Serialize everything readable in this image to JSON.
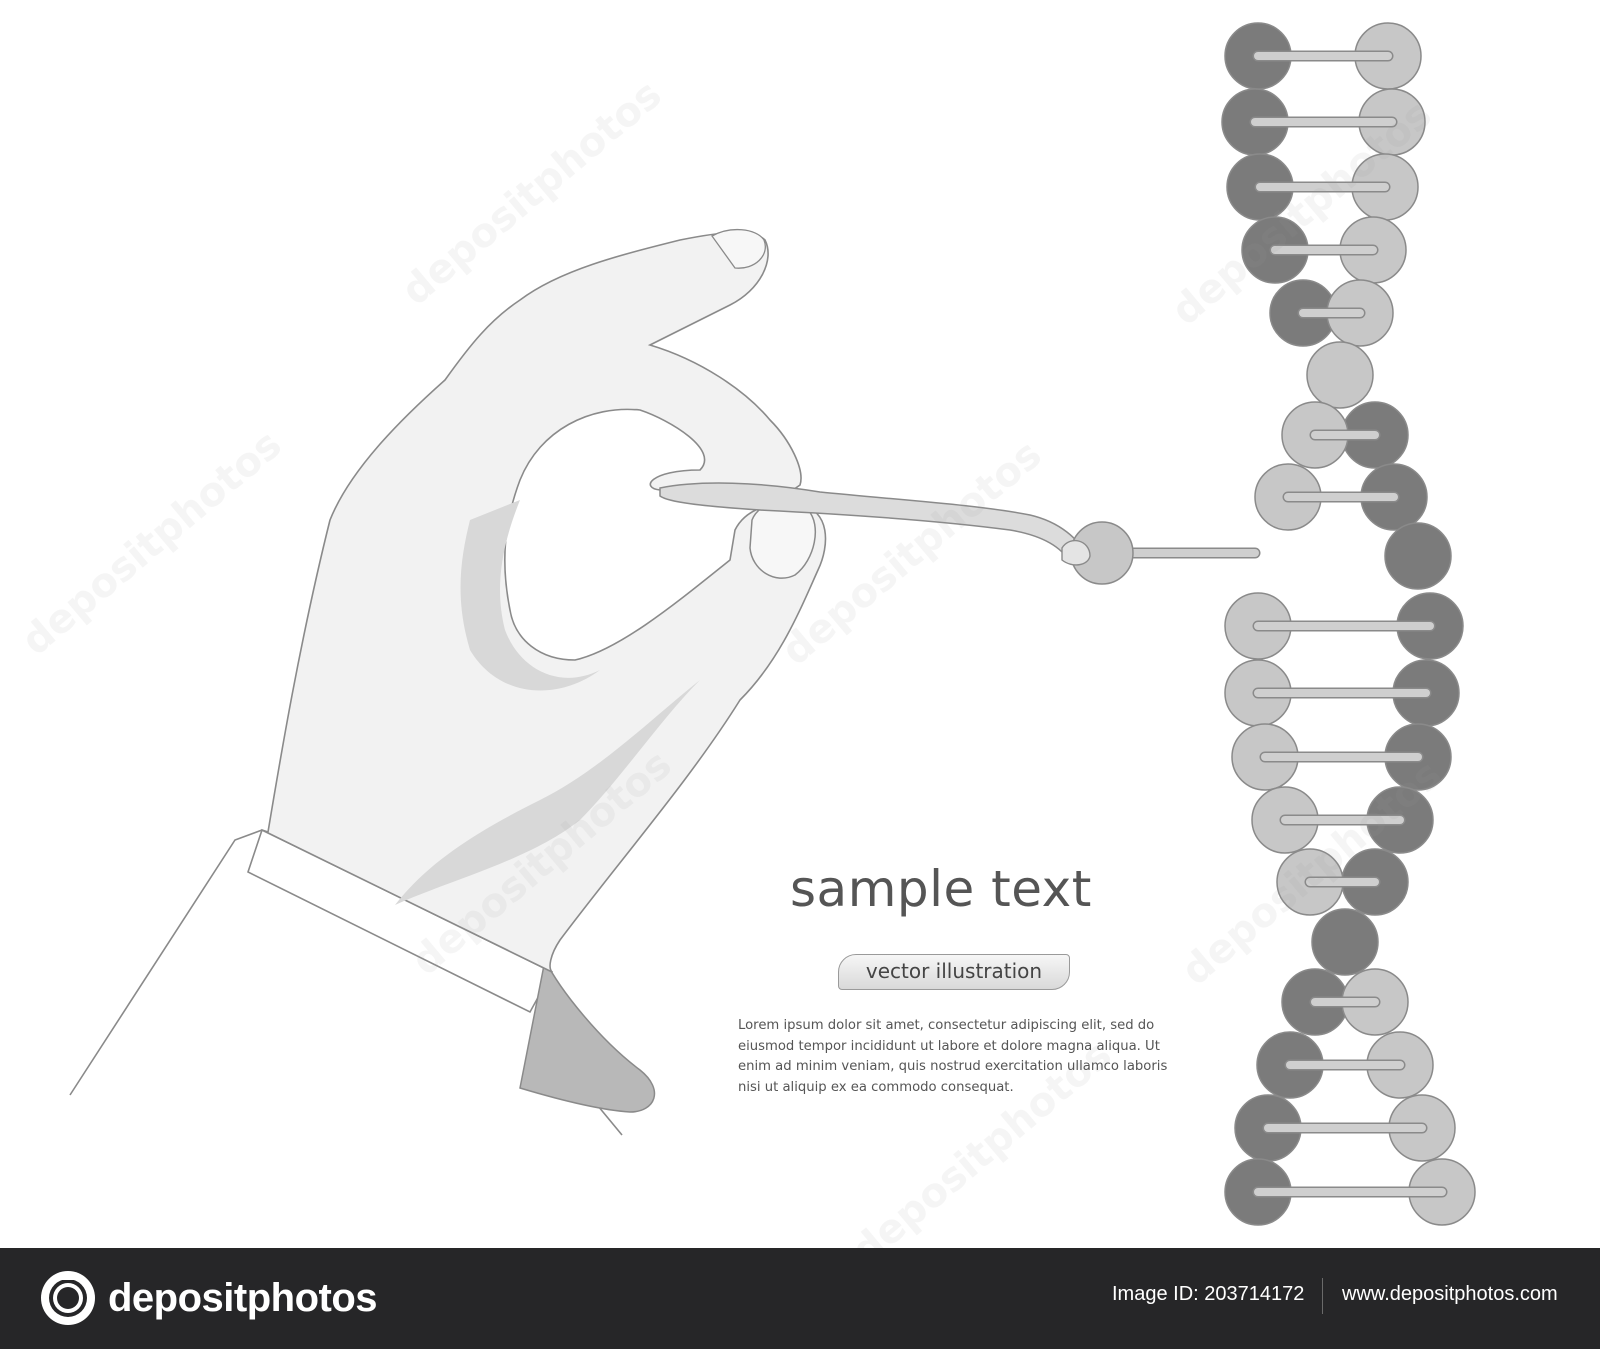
{
  "illustration": {
    "headline": "sample text",
    "subtitle_pill": "vector illustration",
    "body_text": "Lorem ipsum dolor sit amet, consectetur adipiscing elit, sed do eiusmod tempor incididunt ut labore et dolore magna aliqua. Ut enim ad minim veniam, quis nostrud exercitation ullamco laboris nisi ut aliquip ex ea commodo consequat.",
    "watermark_text": "depositphotos",
    "colors": {
      "dark_node": "#7b7b7b",
      "light_node": "#c7c7c7",
      "outline": "#8a8a8a",
      "glove": "#f2f2f2",
      "glove_shade": "#d8d8d8",
      "sleeve_cuff": "#ffffff"
    },
    "icons": [
      "gloved-hand",
      "tweezers",
      "dna-double-helix",
      "extracted-nucleotide"
    ]
  },
  "footer": {
    "brand": "depositphotos",
    "image_id": "Image ID: 203714172",
    "url": "www.depositphotos.com",
    "background": "#262628"
  }
}
